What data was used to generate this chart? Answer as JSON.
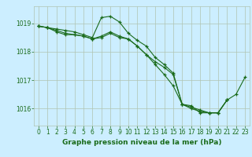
{
  "background_color": "#cceeff",
  "grid_color": "#b0c4b0",
  "line_color": "#1a6b1a",
  "marker": "+",
  "title": "Graphe pression niveau de la mer (hPa)",
  "xlim": [
    -0.5,
    23.5
  ],
  "ylim": [
    1015.4,
    1019.6
  ],
  "yticks": [
    1016,
    1017,
    1018,
    1019
  ],
  "xticks": [
    0,
    1,
    2,
    3,
    4,
    5,
    6,
    7,
    8,
    9,
    10,
    11,
    12,
    13,
    14,
    15,
    16,
    17,
    18,
    19,
    20,
    21,
    22,
    23
  ],
  "series": [
    [
      1018.9,
      1018.85,
      1018.8,
      1018.75,
      1018.7,
      1018.6,
      1018.5,
      1019.2,
      1019.25,
      1019.05,
      1018.65,
      1018.4,
      1018.2,
      1017.8,
      1017.55,
      1017.25,
      1016.15,
      1016.1,
      1015.85,
      1015.85,
      1015.85,
      1016.3,
      1016.5,
      1017.1
    ],
    [
      1018.9,
      1018.85,
      1018.7,
      1018.6,
      1018.6,
      1018.55,
      1018.45,
      1018.5,
      1018.65,
      1018.5,
      1018.45,
      1018.2,
      1017.9,
      1017.65,
      1017.45,
      1017.2,
      1016.15,
      1016.05,
      1015.95,
      1015.85,
      1015.85,
      1016.3,
      null,
      null
    ],
    [
      1018.9,
      1018.85,
      1018.75,
      1018.65,
      1018.6,
      1018.55,
      1018.45,
      1018.55,
      1018.7,
      1018.55,
      1018.45,
      1018.2,
      1017.9,
      1017.55,
      1017.2,
      1016.8,
      1016.15,
      1016.0,
      1015.9,
      1015.85,
      1015.85,
      1016.3,
      null,
      null
    ]
  ],
  "title_fontsize": 6.5,
  "tick_fontsize": 5.5
}
